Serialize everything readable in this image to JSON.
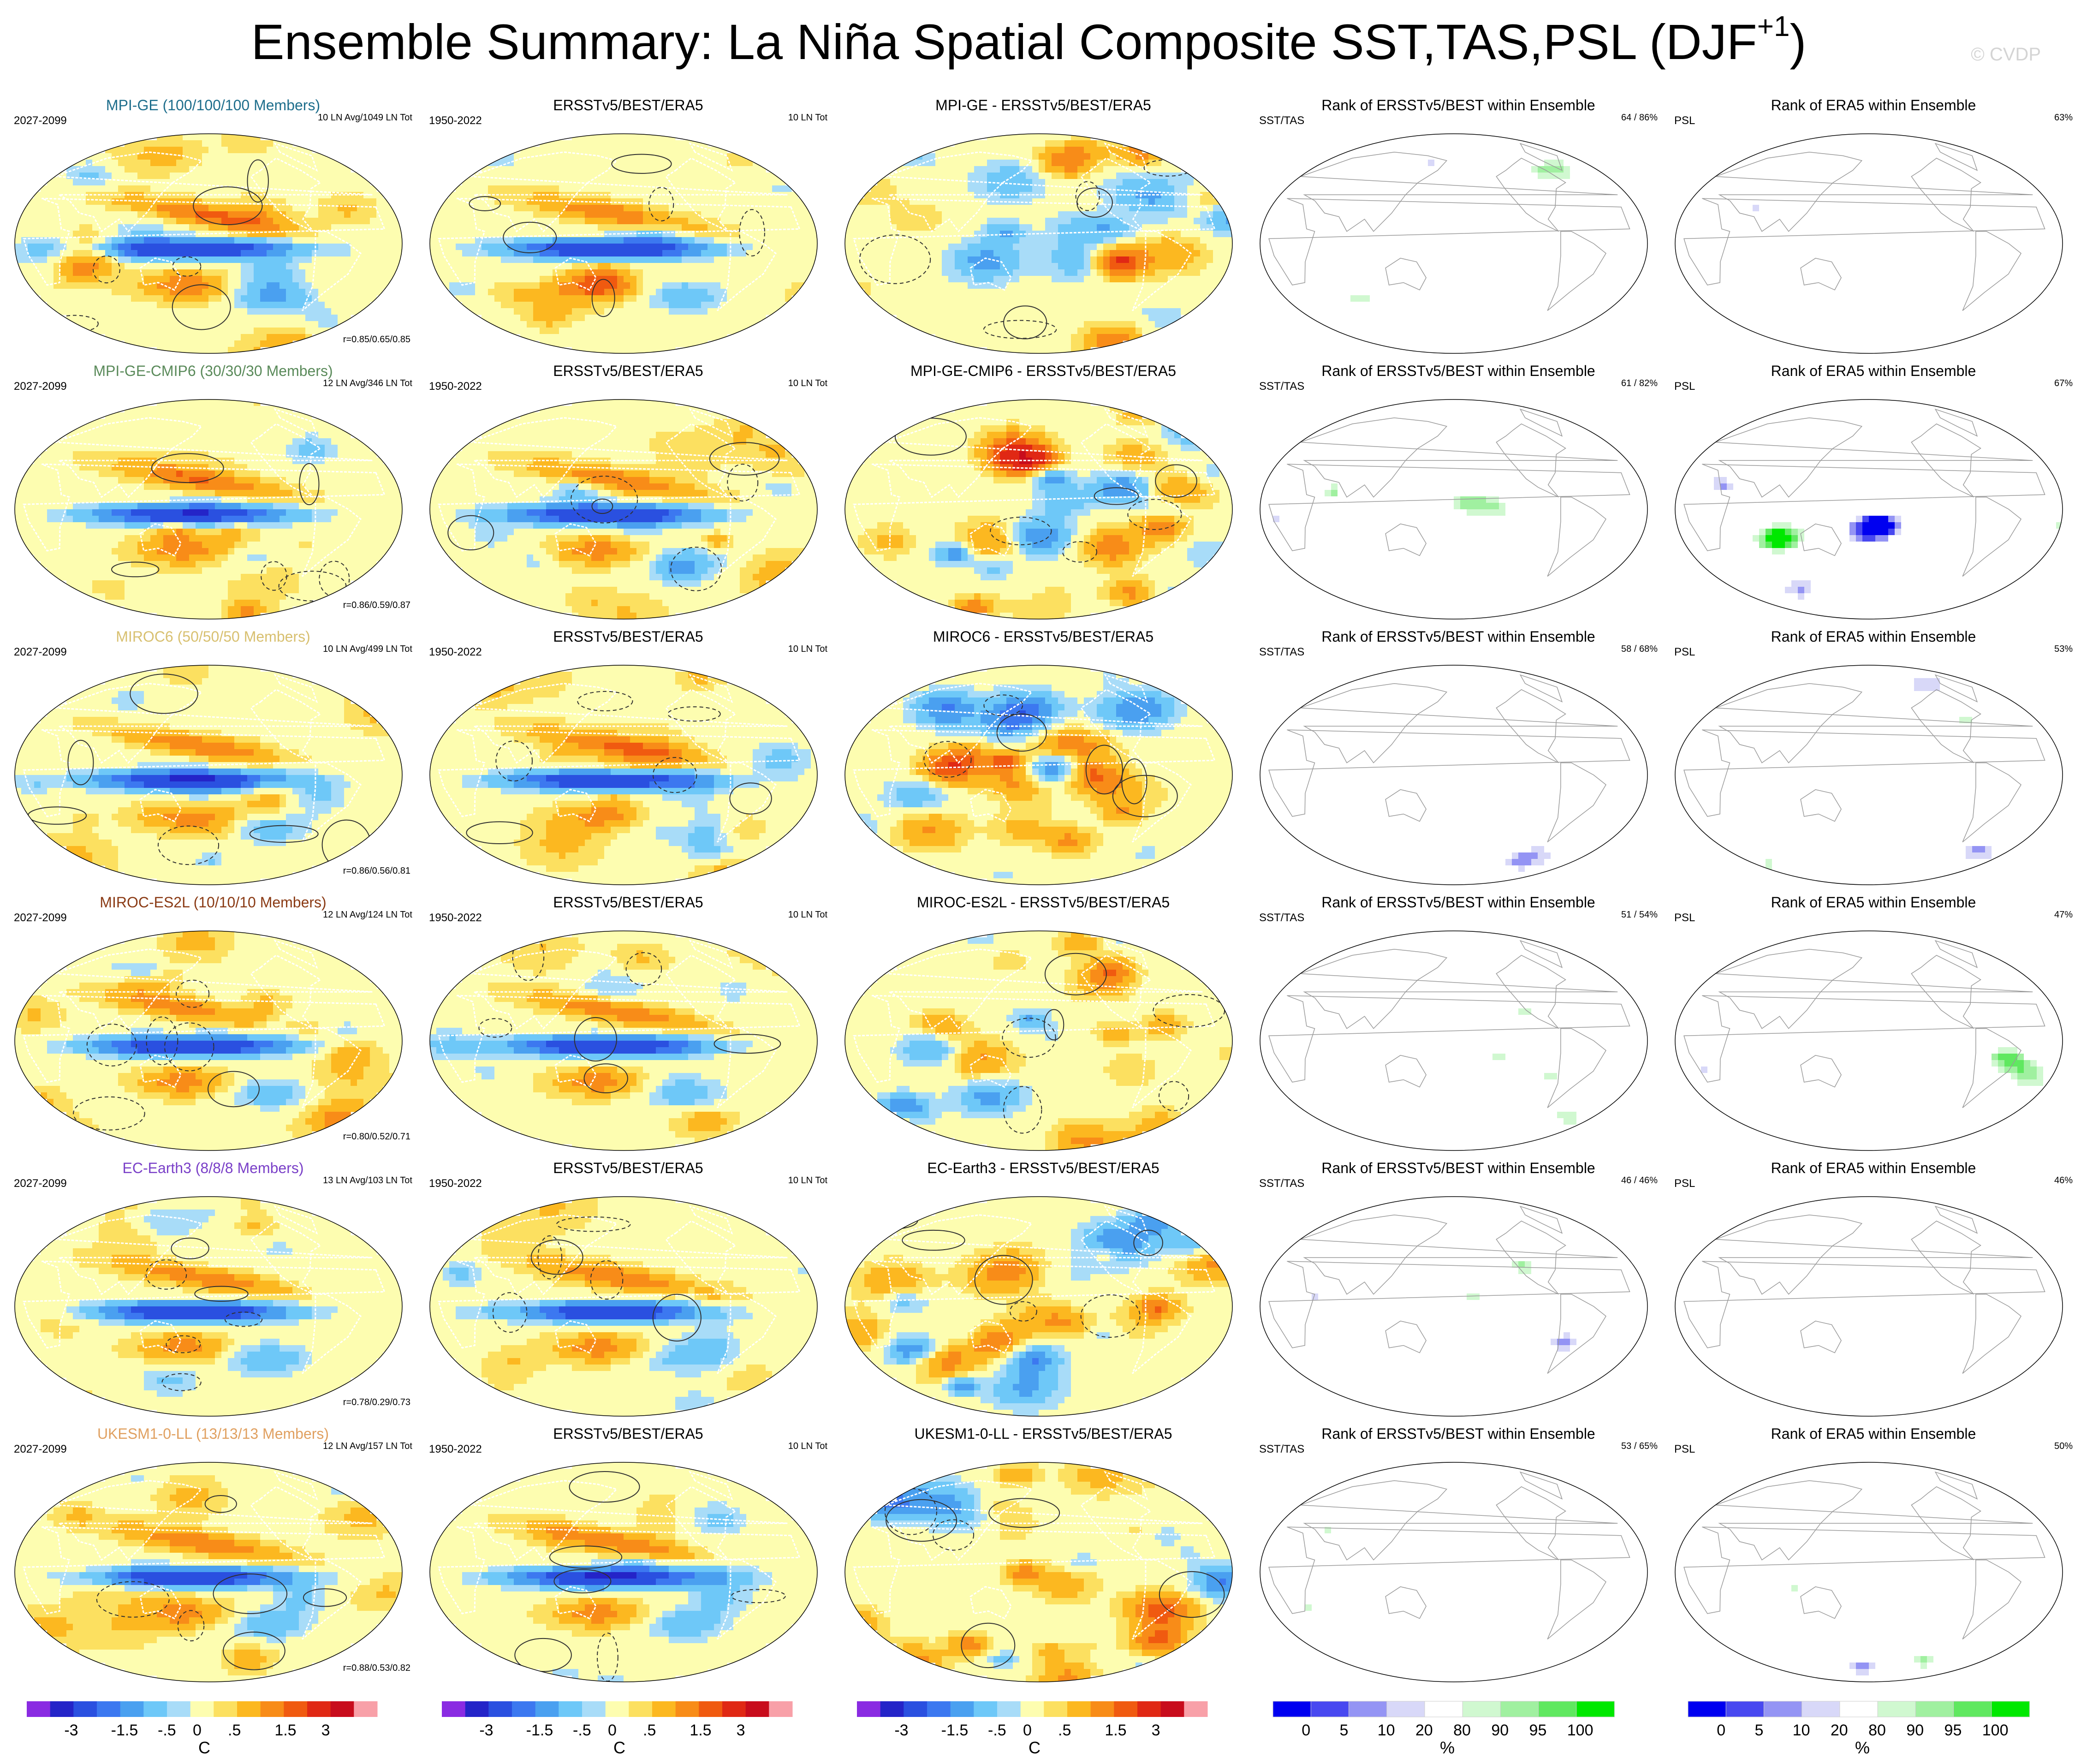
{
  "title": {
    "main": "Ensemble Summary: La Niña Spatial Composite SST,TAS,PSL (DJF",
    "sup": "+1",
    "close": ")"
  },
  "watermark": "© CVDP",
  "colors": {
    "diverging": [
      "#8a2be2",
      "#2424c8",
      "#2a50e0",
      "#3c78f0",
      "#4aa0f0",
      "#6ec8f8",
      "#a8dcf8",
      "#fdfdb0",
      "#fce060",
      "#fcb820",
      "#f88c18",
      "#f05a10",
      "#e02814",
      "#c80c1c",
      "#f8a0a8"
    ],
    "rank": [
      "#0000f0",
      "#4848f0",
      "#9494f4",
      "#d8d8f8",
      "#ffffff",
      "#d0f8d0",
      "#a0f0a0",
      "#60e860",
      "#00e800"
    ],
    "continent_line": "#ffffff",
    "contour_line": "#303030",
    "coast_line_rank": "#9a9a9a"
  },
  "rows": [
    {
      "model": "MPI-GE (100/100/100 Members)",
      "model_color": "#1e6e8c",
      "period": "2027-2099",
      "count": "10 LN Avg/1049 LN Tot",
      "corr": "r=0.85/0.65/0.85",
      "diff_title": "MPI-GE - ERSSTv5/BEST/ERA5",
      "rank_pct": "64 /  86%",
      "psl_pct": "63%"
    },
    {
      "model": "MPI-GE-CMIP6 (30/30/30 Members)",
      "model_color": "#5a8a5a",
      "period": "2027-2099",
      "count": "12 LN Avg/346 LN Tot",
      "corr": "r=0.86/0.59/0.87",
      "diff_title": "MPI-GE-CMIP6 - ERSSTv5/BEST/ERA5",
      "rank_pct": "61 /  82%",
      "psl_pct": "67%"
    },
    {
      "model": "MIROC6 (50/50/50 Members)",
      "model_color": "#d8c070",
      "period": "2027-2099",
      "count": "10 LN Avg/499 LN Tot",
      "corr": "r=0.86/0.56/0.81",
      "diff_title": "MIROC6 - ERSSTv5/BEST/ERA5",
      "rank_pct": "58 /  68%",
      "psl_pct": "53%"
    },
    {
      "model": "MIROC-ES2L (10/10/10 Members)",
      "model_color": "#8a3a14",
      "period": "2027-2099",
      "count": "12 LN Avg/124 LN Tot",
      "corr": "r=0.80/0.52/0.71",
      "diff_title": "MIROC-ES2L - ERSSTv5/BEST/ERA5",
      "rank_pct": "51 /  54%",
      "psl_pct": "47%"
    },
    {
      "model": "EC-Earth3 (8/8/8 Members)",
      "model_color": "#7a40c8",
      "period": "2027-2099",
      "count": "13 LN Avg/103 LN Tot",
      "corr": "r=0.78/0.29/0.73",
      "diff_title": "EC-Earth3 - ERSSTv5/BEST/ERA5",
      "rank_pct": "46 /  46%",
      "psl_pct": "46%"
    },
    {
      "model": "UKESM1-0-LL (13/13/13 Members)",
      "model_color": "#e0a060",
      "period": "2027-2099",
      "count": "12 LN Avg/157 LN Tot",
      "corr": "r=0.88/0.53/0.82",
      "diff_title": "UKESM1-0-LL - ERSSTv5/BEST/ERA5",
      "rank_pct": "53 /  65%",
      "psl_pct": "50%"
    }
  ],
  "obs": {
    "title": "ERSSTv5/BEST/ERA5",
    "period": "1950-2022",
    "count": "10 LN Tot"
  },
  "rank_sst": {
    "title": "Rank of ERSSTv5/BEST within Ensemble",
    "label": "SST/TAS"
  },
  "rank_psl": {
    "title": "Rank of ERA5 within Ensemble",
    "label": "PSL"
  },
  "chart_data": [
    {
      "type": "heatmap",
      "colorbar": "diverging",
      "unit": "C",
      "tick_labels": [
        "-3",
        "-1.5",
        "-.5",
        "0",
        ".5",
        "1.5",
        "3"
      ]
    },
    {
      "type": "heatmap",
      "colorbar": "rank",
      "unit": "%",
      "tick_labels": [
        "0",
        "5",
        "10",
        "20",
        "80",
        "90",
        "95",
        "100"
      ]
    }
  ]
}
